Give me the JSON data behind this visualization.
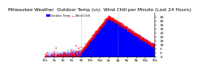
{
  "title": "Milwaukee Weather  Outdoor Temp (vs)  Wind Chill per Minute (Last 24 Hours)",
  "bg_color": "#ffffff",
  "plot_bg_color": "#ffffff",
  "line1_color": "#0000ff",
  "line2_color": "#ff0000",
  "grid_color": "#888888",
  "ylim": [
    -5,
    50
  ],
  "title_fontsize": 4.2,
  "tick_fontsize": 3.2,
  "vline_positions": [
    0.333,
    0.666
  ],
  "legend_entries": [
    "Outdoor Temp",
    "Wind Chill"
  ],
  "legend_colors": [
    "#0000ff",
    "#ff0000"
  ]
}
